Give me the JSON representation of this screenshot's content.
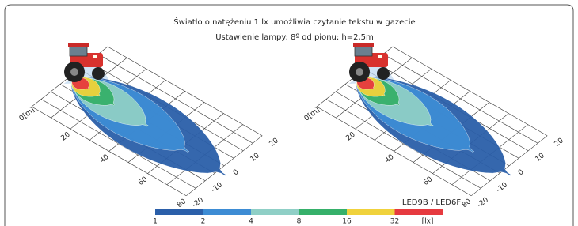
{
  "header": {
    "title": "Światło o natężeniu 1 lx umożliwia czytanie tekstu w gazecie",
    "subtitle": "Ustawienie lampy: 8º od pionu: h=2,5m"
  },
  "diagrams": [
    {
      "distance_labels": [
        "0[m]",
        "20",
        "40",
        "60",
        "80"
      ],
      "lateral_labels": [
        "20",
        "10",
        "0",
        "-10",
        "-20"
      ]
    },
    {
      "distance_labels": [
        "0[m]",
        "20",
        "40",
        "60",
        "80"
      ],
      "lateral_labels": [
        "20",
        "10",
        "0",
        "-10",
        "-20"
      ]
    }
  ],
  "legend": {
    "title": "LED9B / LED6F",
    "scale_labels": [
      "1",
      "2",
      "4",
      "8",
      "16",
      "32"
    ],
    "unit": "[lx]",
    "colors": [
      "#2b5fa9",
      "#3d8cd4",
      "#8fcfc6",
      "#36b06a",
      "#f0d23c",
      "#e63a3f"
    ]
  }
}
